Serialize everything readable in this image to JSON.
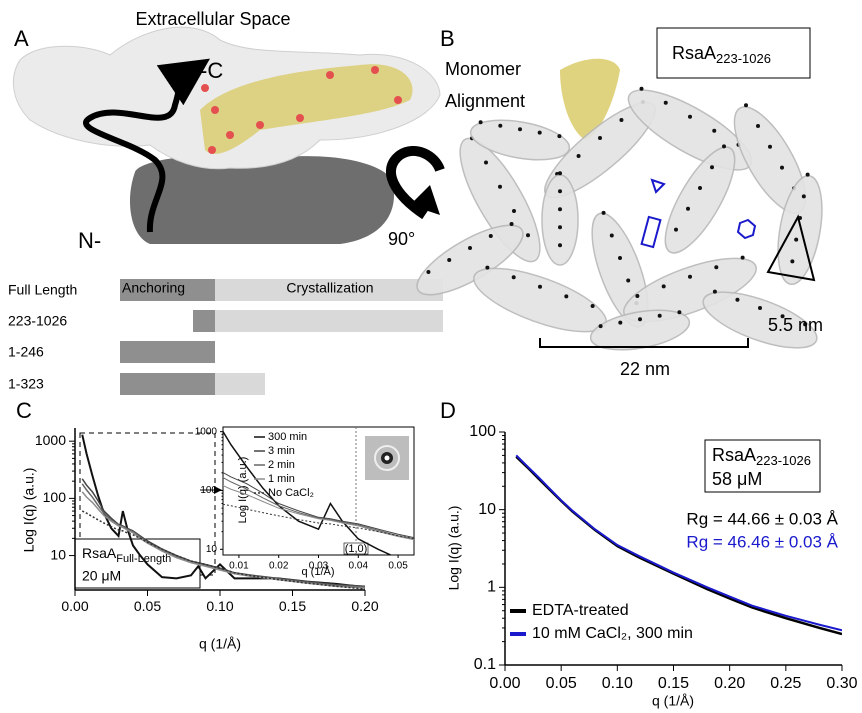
{
  "panel_a": {
    "label": "A",
    "title": "Extracellular Space",
    "c_terminus": "-C",
    "n_terminus": "N-",
    "rotation": "90°",
    "constructs": {
      "header": "Full Length",
      "anchoring": "Anchoring",
      "crystallization": "Crystallization",
      "rows": [
        "223-1026",
        "1-246",
        "1-323"
      ]
    }
  },
  "panel_b": {
    "label": "B",
    "protein": {
      "text": "RsaA",
      "subscript": "223-1026"
    },
    "monomer": [
      "Monomer",
      "Alignment"
    ],
    "unit_cell": "5.5 nm",
    "lattice_spacing": "22 nm"
  },
  "chart_data": [
    {
      "type": "line",
      "panel": "C",
      "xlabel": "q (1/Å)",
      "ylabel": "Log I(q) (a.u.)",
      "log_y": true,
      "xlim": [
        0,
        0.2
      ],
      "ylim": [
        2.5,
        1700
      ],
      "xticks": [
        {
          "value": 0,
          "label": "0.00"
        },
        0.05,
        {
          "value": 0.1,
          "label": "0.10"
        },
        0.15,
        {
          "value": 0.2,
          "label": "0.20"
        }
      ],
      "yticks": [
        10,
        100,
        1000
      ],
      "x": [
        0.005,
        0.008,
        0.012,
        0.016,
        0.02,
        0.025,
        0.03,
        0.033,
        0.036,
        0.04,
        0.045,
        0.05,
        0.06,
        0.07,
        0.08,
        0.085,
        0.09,
        0.1,
        0.11,
        0.12,
        0.14,
        0.16,
        0.18,
        0.2
      ],
      "series": [
        {
          "name": "300 min",
          "color": "#111111",
          "values": [
            1300,
            600,
            250,
            110,
            55,
            30,
            22,
            60,
            30,
            15,
            10,
            7,
            4.2,
            4,
            4.5,
            6.5,
            4,
            7,
            4,
            4,
            4,
            3.5,
            3.2,
            2.8
          ]
        },
        {
          "name": "3 min",
          "color": "#444444",
          "values": [
            220,
            170,
            130,
            90,
            60,
            45,
            35,
            33,
            30,
            27,
            22,
            18,
            13,
            10,
            8,
            7.5,
            7,
            6,
            5,
            4.6,
            4,
            3.5,
            3.1,
            2.9
          ]
        },
        {
          "name": "2 min",
          "color": "#666666",
          "values": [
            180,
            140,
            105,
            75,
            55,
            42,
            34,
            32,
            29,
            26,
            21,
            17,
            12.5,
            9.5,
            7.8,
            7.2,
            6.7,
            5.8,
            4.9,
            4.5,
            3.9,
            3.4,
            3,
            2.8
          ]
        },
        {
          "name": "1 min",
          "color": "#8c8c8c",
          "values": [
            130,
            105,
            85,
            65,
            50,
            40,
            33,
            31,
            28,
            25,
            20,
            16.5,
            12,
            9.2,
            7.5,
            7,
            6.5,
            5.6,
            4.8,
            4.4,
            3.8,
            3.3,
            2.9,
            2.7
          ]
        },
        {
          "name": "No CaCl₂",
          "color": "#333333",
          "dash": "dotted",
          "values": [
            60,
            55,
            48,
            42,
            37,
            32,
            28,
            27,
            25,
            23,
            20,
            17,
            13,
            10,
            8,
            7.5,
            7,
            6,
            5,
            4.5,
            3.8,
            3.3,
            2.9,
            2.6
          ]
        }
      ],
      "annotation": {
        "text": "RsaA",
        "subscript": "Full-Length",
        "concentration": "20 μM"
      },
      "inset": {
        "xlim": [
          0.006,
          0.054
        ],
        "ylim": [
          8,
          1200
        ],
        "xticks": [
          0.01,
          0.02,
          0.03,
          0.04,
          0.05
        ],
        "yticks": [
          10,
          100,
          1000
        ],
        "peak_label": "(1,0)",
        "legend": true
      }
    },
    {
      "type": "line",
      "panel": "D",
      "xlabel": "q (1/Å)",
      "ylabel": "Log I(q) (a.u.)",
      "log_y": true,
      "xlim": [
        0,
        0.3
      ],
      "ylim": [
        0.1,
        100
      ],
      "xticks": [
        {
          "value": 0,
          "label": "0.00"
        },
        0.05,
        {
          "value": 0.1,
          "label": "0.10"
        },
        0.15,
        {
          "value": 0.2,
          "label": "0.20"
        },
        0.25,
        {
          "value": 0.3,
          "label": "0.30"
        }
      ],
      "yticks": [
        0.1,
        1,
        10,
        100
      ],
      "x": [
        0.01,
        0.02,
        0.03,
        0.04,
        0.05,
        0.06,
        0.08,
        0.1,
        0.12,
        0.15,
        0.18,
        0.2,
        0.22,
        0.25,
        0.28,
        0.3
      ],
      "series": [
        {
          "name": "EDTA-treated",
          "color": "#000000",
          "values": [
            48,
            35,
            25,
            18,
            13,
            9.5,
            5.5,
            3.4,
            2.4,
            1.5,
            0.95,
            0.72,
            0.55,
            0.4,
            0.3,
            0.25
          ]
        },
        {
          "name": "10 mM CaCl₂, 300 min",
          "color": "#1a1acc",
          "values": [
            50,
            36,
            26,
            18.5,
            13.2,
            9.7,
            5.6,
            3.5,
            2.5,
            1.55,
            1.0,
            0.76,
            0.58,
            0.43,
            0.33,
            0.28
          ]
        }
      ],
      "annotation": {
        "text": "RsaA",
        "subscript": "223-1026",
        "concentration": "58 μM"
      },
      "rg_labels": [
        {
          "text": "Rg = 44.66 ± 0.03 Å",
          "color": "#000000"
        },
        {
          "text": "Rg = 46.46 ± 0.03 Å",
          "color": "#1a1acc"
        }
      ],
      "legend": "lower left"
    }
  ]
}
